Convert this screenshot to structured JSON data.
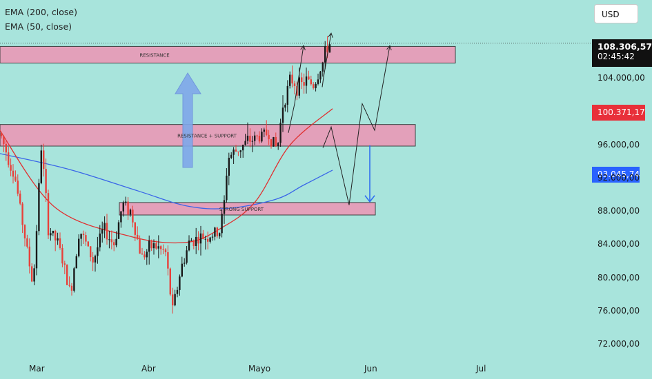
{
  "legend": {
    "ema200": "EMA (200, close)",
    "ema50": "EMA (50, close)"
  },
  "currency_button": "USD",
  "price_labels": {
    "current_price": "108.306,57",
    "countdown": "02:45:42",
    "ema50_value": "100.371,17",
    "ema200_value": "93.045,74"
  },
  "colors": {
    "background": "#a8e4dc",
    "zone_fill": "#e89bb8",
    "up_candle": "#1a1a1a",
    "down_candle": "#e8403a",
    "ema50_line": "#e03030",
    "ema200_line": "#3a66e8",
    "current_price_box": "#111111",
    "ema50_box": "#e8303a",
    "ema200_box": "#2962ff",
    "arrow_blue": "#2f6ef0",
    "arrow_fill": "#7fa8ea"
  },
  "chart_data": {
    "type": "candlestick",
    "x_labels": [
      "Mar",
      "Abr",
      "Mayo",
      "Jun",
      "Jul"
    ],
    "y_ticks": [
      72000,
      76000,
      80000,
      84000,
      88000,
      92000,
      96000,
      104000
    ],
    "y_tick_labels": [
      "72.000,00",
      "76.000,00",
      "80.000,00",
      "84.000,00",
      "88.000,00",
      "92.000,00",
      "96.000,00",
      "104.000,00"
    ],
    "ylim": [
      71000,
      112500
    ],
    "zones": [
      {
        "label": "RESISTANCE",
        "low": 105900,
        "high": 107900
      },
      {
        "label": "RESISTANCE + SUPPORT",
        "low": 95900,
        "high": 98500
      },
      {
        "label": "STRONG SUPPORT",
        "low": 87600,
        "high": 89100
      }
    ],
    "ema50": [
      [
        -1,
        97900
      ],
      [
        80,
        88500
      ],
      [
        190,
        85000
      ],
      [
        270,
        84300
      ],
      [
        320,
        86000
      ],
      [
        370,
        89200
      ],
      [
        420,
        96000
      ],
      [
        482,
        100400
      ]
    ],
    "ema200": [
      [
        0,
        95000
      ],
      [
        100,
        93100
      ],
      [
        200,
        90500
      ],
      [
        270,
        88700
      ],
      [
        330,
        88400
      ],
      [
        400,
        89500
      ],
      [
        440,
        91200
      ],
      [
        482,
        93000
      ]
    ],
    "current_price": 108306.57,
    "ema50_value": 100371.17,
    "ema200_value": 93045.74,
    "projection_paths": [
      [
        [
          418,
          97500
        ],
        [
          427,
          101000
        ],
        [
          440,
          108000
        ]
      ],
      [
        [
          467,
          103000
        ],
        [
          469,
          104200
        ],
        [
          480,
          109500
        ]
      ],
      [
        [
          468,
          95700
        ],
        [
          480,
          98200
        ],
        [
          506,
          88800
        ],
        [
          525,
          101000
        ],
        [
          543,
          97800
        ],
        [
          565,
          108000
        ]
      ]
    ]
  }
}
